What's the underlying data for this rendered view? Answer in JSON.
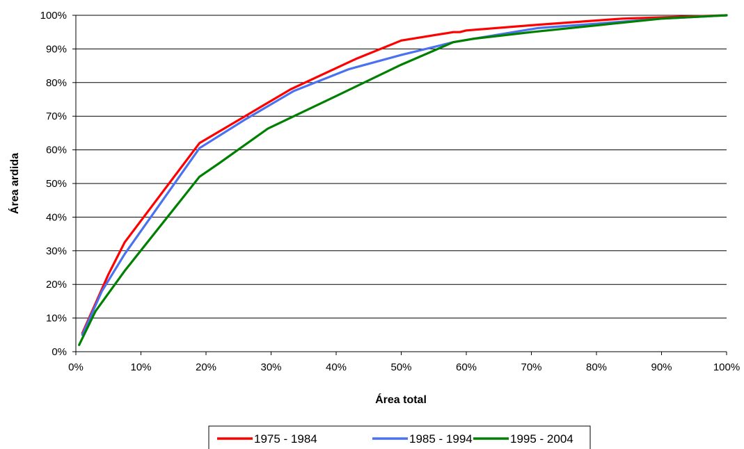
{
  "chart_data": {
    "type": "line",
    "xlabel": "Área total",
    "ylabel": "Área ardida",
    "xlim": [
      0,
      100
    ],
    "ylim": [
      0,
      100
    ],
    "x_ticks": [
      "0%",
      "10%",
      "20%",
      "30%",
      "40%",
      "50%",
      "60%",
      "70%",
      "80%",
      "90%",
      "100%"
    ],
    "y_ticks": [
      "0%",
      "10%",
      "20%",
      "30%",
      "40%",
      "50%",
      "60%",
      "70%",
      "80%",
      "90%",
      "100%"
    ],
    "grid": "horizontal",
    "legend_position": "bottom",
    "series": [
      {
        "name": "1975 - 1984",
        "color": "#ff0000",
        "points": [
          [
            1,
            5.5
          ],
          [
            5,
            23
          ],
          [
            7.5,
            32.5
          ],
          [
            19,
            62
          ],
          [
            26,
            70
          ],
          [
            33,
            78
          ],
          [
            43,
            87
          ],
          [
            50,
            92.5
          ],
          [
            58,
            95
          ],
          [
            59,
            95
          ],
          [
            60,
            95.5
          ],
          [
            71,
            97.2
          ],
          [
            84,
            99
          ],
          [
            100,
            100
          ]
        ]
      },
      {
        "name": "1985 - 1994",
        "color": "#4a72f0",
        "points": [
          [
            1,
            5
          ],
          [
            4,
            18
          ],
          [
            7.5,
            29
          ],
          [
            19,
            60.5
          ],
          [
            26,
            69
          ],
          [
            33.5,
            77.5
          ],
          [
            42,
            84
          ],
          [
            50,
            88.2
          ],
          [
            58,
            92
          ],
          [
            61,
            93
          ],
          [
            71,
            96.2
          ],
          [
            80,
            97.5
          ],
          [
            90,
            99
          ],
          [
            100,
            100
          ]
        ]
      },
      {
        "name": "1995 - 2004",
        "color": "#008000",
        "points": [
          [
            0.5,
            2
          ],
          [
            3,
            12
          ],
          [
            7.5,
            24
          ],
          [
            19,
            52
          ],
          [
            22,
            56
          ],
          [
            29.5,
            66.3
          ],
          [
            40,
            76
          ],
          [
            50,
            85.3
          ],
          [
            58,
            92
          ],
          [
            61,
            93
          ],
          [
            70,
            95
          ],
          [
            80,
            97
          ],
          [
            90,
            99
          ],
          [
            100,
            100
          ]
        ]
      }
    ]
  }
}
